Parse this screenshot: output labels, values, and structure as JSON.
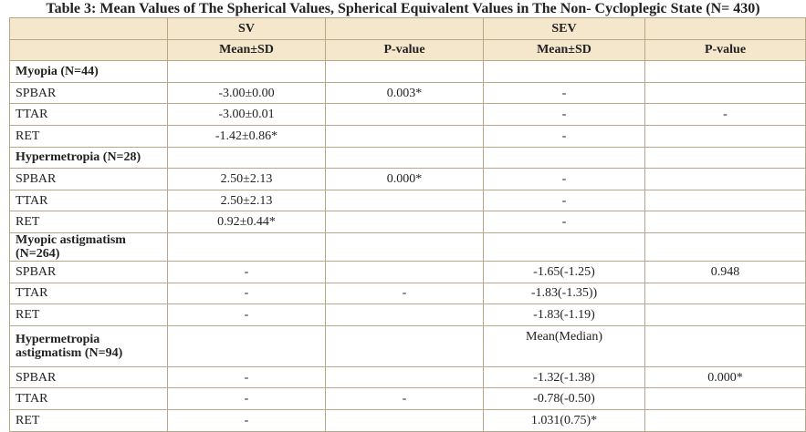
{
  "caption": "Table 3: Mean Values of The Spherical Values, Spherical Equivalent Values in The Non- Cycloplegic State (N= 430)",
  "header": {
    "sv": "SV",
    "sev": "SEV",
    "mean_sd_1": "Mean±SD",
    "p_value_1": "P-value",
    "mean_sd_2": "Mean±SD",
    "p_value_2": "P-value"
  },
  "groups": [
    {
      "title": "Myopia (N=44)",
      "extra": "",
      "rows": [
        {
          "label": "SPBAR",
          "sv_mean": "-3.00±0.00",
          "sv_p": "0.003*",
          "sev_mean": "-",
          "sev_p": ""
        },
        {
          "label": "TTAR",
          "sv_mean": "-3.00±0.01",
          "sv_p": "",
          "sev_mean": "-",
          "sev_p": "-"
        },
        {
          "label": "RET",
          "sv_mean": "-1.42±0.86*",
          "sv_p": "",
          "sev_mean": "-",
          "sev_p": ""
        }
      ]
    },
    {
      "title": "Hypermetropia (N=28)",
      "extra": "",
      "rows": [
        {
          "label": "SPBAR",
          "sv_mean": "2.50±2.13",
          "sv_p": "0.000*",
          "sev_mean": "-",
          "sev_p": ""
        },
        {
          "label": "TTAR",
          "sv_mean": "2.50±2.13",
          "sv_p": "",
          "sev_mean": "-",
          "sev_p": ""
        },
        {
          "label": "RET",
          "sv_mean": "0.92±0.44*",
          "sv_p": "",
          "sev_mean": "-",
          "sev_p": ""
        }
      ]
    },
    {
      "title": "Myopic astigmatism (N=264)",
      "extra": "",
      "rows": [
        {
          "label": "SPBAR",
          "sv_mean": "-",
          "sv_p": "",
          "sev_mean": "-1.65(-1.25)",
          "sev_p": "0.948"
        },
        {
          "label": "TTAR",
          "sv_mean": "-",
          "sv_p": "-",
          "sev_mean": "-1.83(-1.35))",
          "sev_p": ""
        },
        {
          "label": "RET",
          "sv_mean": "-",
          "sv_p": "",
          "sev_mean": "-1.83(-1.19)",
          "sev_p": ""
        }
      ]
    },
    {
      "title": "Hypermetropia astigmatism (N=94)",
      "title_line1": "Hypermetropia",
      "title_line2": "astigmatism (N=94)",
      "extra": "Mean(Median)",
      "rows": [
        {
          "label": "SPBAR",
          "sv_mean": "-",
          "sv_p": "",
          "sev_mean": "-1.32(-1.38)",
          "sev_p": "0.000*"
        },
        {
          "label": "TTAR",
          "sv_mean": "-",
          "sv_p": "-",
          "sev_mean": "-0.78(-0.50)",
          "sev_p": ""
        },
        {
          "label": "RET",
          "sv_mean": "-",
          "sv_p": "",
          "sev_mean": "1.031(0.75)*",
          "sev_p": ""
        }
      ]
    }
  ]
}
